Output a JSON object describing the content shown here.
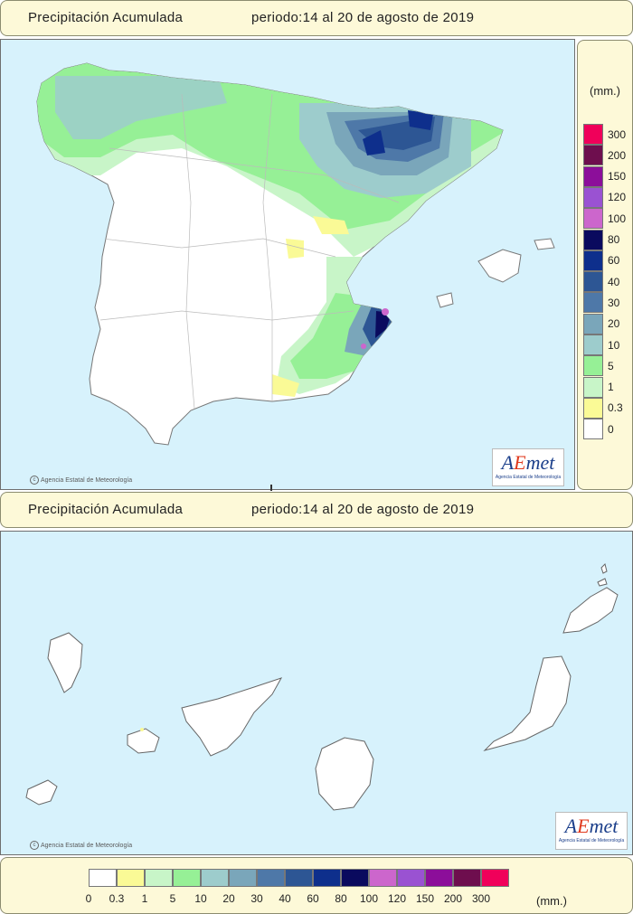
{
  "top_panel": {
    "title": "Precipitación Acumulada",
    "period": "periodo:14 al 20 de agosto de 2019",
    "credit": "Agencia Estatal de Meteorología",
    "logo_text": "AEmet",
    "logo_sub": "Agencia Estatal de Meteorología"
  },
  "bottom_panel": {
    "title": "Precipitación Acumulada",
    "period": "periodo:14 al 20 de agosto de 2019",
    "credit": "Agencia Estatal de Meteorología",
    "logo_text": "AEmet",
    "logo_sub": "Agencia Estatal de Meteorología"
  },
  "legend": {
    "unit": "(mm.)",
    "vertical_labels": [
      "300",
      "200",
      "150",
      "120",
      "100",
      "80",
      "60",
      "40",
      "30",
      "20",
      "10",
      "5",
      "1",
      "0.3",
      "0"
    ],
    "vertical_colors": [
      "#f0005a",
      "#6e0e4e",
      "#8c0e9a",
      "#9a52d2",
      "#cc66cc",
      "#0a0a5e",
      "#0e2f8c",
      "#2d5694",
      "#4e78a8",
      "#7aa6ba",
      "#9dcccc",
      "#96f096",
      "#c8f5c8",
      "#fafa96",
      "#ffffff"
    ],
    "horizontal_labels": [
      "0",
      "0.3",
      "1",
      "5",
      "10",
      "20",
      "30",
      "40",
      "60",
      "80",
      "100",
      "120",
      "150",
      "200",
      "300"
    ],
    "horizontal_colors": [
      "#ffffff",
      "#fafa96",
      "#c8f5c8",
      "#96f096",
      "#9dcccc",
      "#7aa6ba",
      "#4e78a8",
      "#2d5694",
      "#0e2f8c",
      "#0a0a5e",
      "#cc66cc",
      "#9a52d2",
      "#8c0e9a",
      "#6e0e4e",
      "#f0005a"
    ]
  },
  "colors": {
    "sea": "#d7f2fc",
    "land": "#ffffff",
    "panel": "#fdf9d8"
  }
}
